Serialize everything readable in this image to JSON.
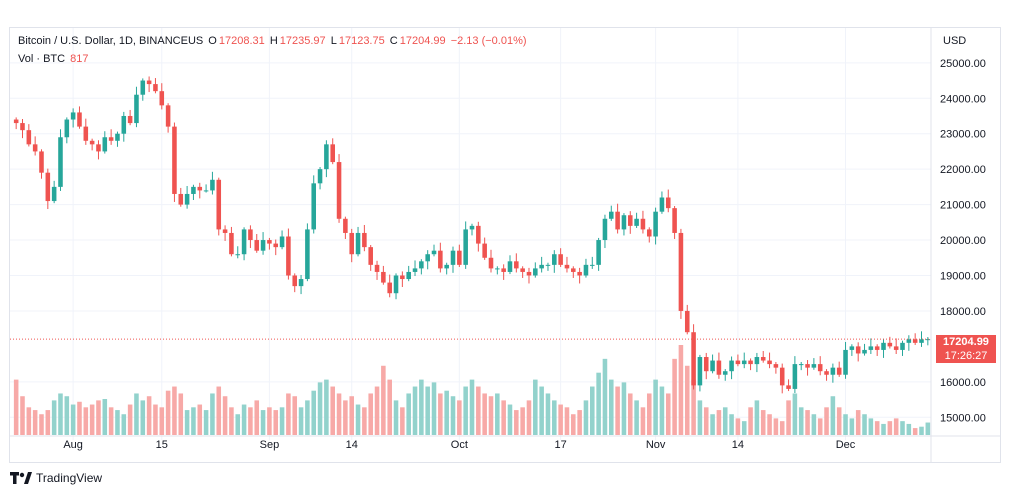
{
  "legend": {
    "symbol": "Bitcoin / U.S. Dollar, 1D, BINANCEUS",
    "o_label": "O",
    "o_value": "17208.31",
    "h_label": "H",
    "h_value": "17235.97",
    "l_label": "L",
    "l_value": "17123.75",
    "c_label": "C",
    "c_value": "17204.99",
    "change": "−2.13 (−0.01%)",
    "vol_label": "Vol · BTC",
    "vol_value": "817"
  },
  "currency": "USD",
  "price_tag": "17204.99",
  "countdown_tag": "17:26:27",
  "brand": "TradingView",
  "colors": {
    "up": "#26a69a",
    "down": "#ef5350",
    "vol_up": "#92d2cc",
    "vol_down": "#f7a9a7"
  },
  "chart_data": {
    "type": "candlestick",
    "ylim": [
      14500,
      25700
    ],
    "y_ticks": [
      "25000.00",
      "24000.00",
      "23000.00",
      "22000.00",
      "21000.00",
      "20000.00",
      "19000.00",
      "18000.00",
      "16000.00",
      "15000.00"
    ],
    "x_ticks": [
      {
        "label": "Aug",
        "index": 9
      },
      {
        "label": "15",
        "index": 23
      },
      {
        "label": "Sep",
        "index": 40
      },
      {
        "label": "14",
        "index": 53
      },
      {
        "label": "Oct",
        "index": 70
      },
      {
        "label": "17",
        "index": 86
      },
      {
        "label": "Nov",
        "index": 101
      },
      {
        "label": "14",
        "index": 114
      },
      {
        "label": "Dec",
        "index": 131
      }
    ],
    "closes": [
      23300,
      23100,
      22700,
      22500,
      21900,
      21100,
      21500,
      22900,
      23400,
      23600,
      23200,
      22800,
      22700,
      22500,
      22900,
      22800,
      23000,
      23500,
      23300,
      24100,
      24500,
      24400,
      24200,
      23800,
      23200,
      21300,
      21000,
      21300,
      21500,
      21400,
      21400,
      21700,
      20300,
      20200,
      19600,
      19600,
      20300,
      20000,
      19700,
      20000,
      19900,
      19800,
      20100,
      19000,
      18700,
      18900,
      20300,
      21600,
      22000,
      22700,
      22200,
      20600,
      20200,
      19600,
      20200,
      19800,
      19300,
      19100,
      18800,
      18500,
      19000,
      18900,
      19100,
      19200,
      19400,
      19600,
      19700,
      19200,
      19300,
      19700,
      19300,
      20300,
      20400,
      19900,
      19500,
      19200,
      19200,
      19100,
      19400,
      19200,
      19100,
      19000,
      19200,
      19300,
      19300,
      19600,
      19300,
      19200,
      19100,
      19000,
      19300,
      19300,
      20000,
      20600,
      20800,
      20300,
      20700,
      20400,
      20600,
      20300,
      20100,
      20800,
      21200,
      20900,
      20200,
      18000,
      17400,
      15900,
      16700,
      16300,
      16600,
      16200,
      16300,
      16600,
      16500,
      16600,
      16500,
      16700,
      16600,
      16500,
      16400,
      15900,
      15800,
      16500,
      16500,
      16400,
      16500,
      16300,
      16200,
      16400,
      16200,
      16900,
      17000,
      16800,
      16900,
      17000,
      16900,
      17100,
      17000,
      16900,
      17100,
      17200,
      17100,
      17200,
      17204
    ],
    "volumes": [
      40,
      28,
      20,
      18,
      15,
      18,
      25,
      30,
      28,
      22,
      24,
      20,
      22,
      25,
      26,
      20,
      18,
      15,
      22,
      30,
      25,
      28,
      22,
      20,
      32,
      35,
      30,
      18,
      20,
      22,
      18,
      30,
      35,
      28,
      20,
      15,
      22,
      20,
      25,
      18,
      20,
      18,
      20,
      30,
      28,
      20,
      25,
      32,
      38,
      40,
      35,
      30,
      25,
      28,
      22,
      20,
      30,
      35,
      50,
      40,
      25,
      20,
      30,
      35,
      40,
      35,
      38,
      30,
      32,
      28,
      25,
      35,
      40,
      35,
      30,
      28,
      30,
      25,
      22,
      18,
      20,
      25,
      40,
      35,
      30,
      25,
      22,
      20,
      15,
      18,
      25,
      35,
      45,
      55,
      40,
      35,
      38,
      30,
      25,
      20,
      30,
      40,
      35,
      30,
      55,
      65,
      50,
      40,
      25,
      20,
      15,
      18,
      20,
      15,
      12,
      10,
      20,
      25,
      18,
      15,
      12,
      10,
      25,
      30,
      20,
      18,
      15,
      12,
      20,
      28,
      20,
      15,
      12,
      18,
      15,
      12,
      10,
      8,
      10,
      12,
      10,
      8,
      5,
      6,
      9
    ]
  }
}
